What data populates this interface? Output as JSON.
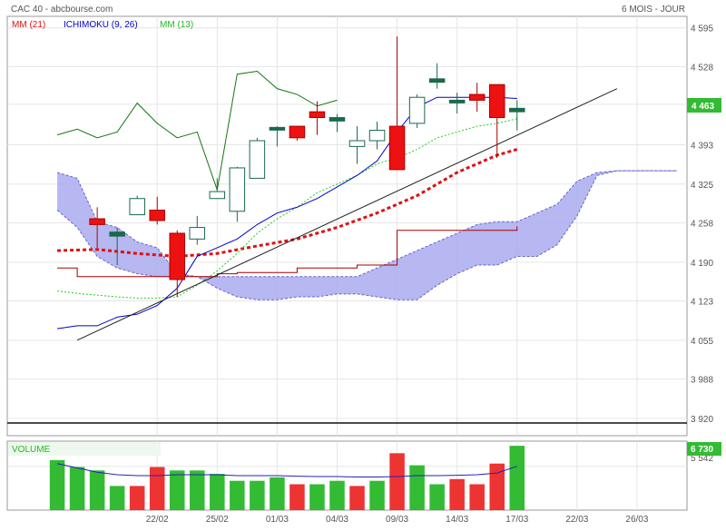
{
  "header": {
    "title": "CAC 40 - abcbourse.com",
    "period": "6 MOIS - JOUR"
  },
  "legend": {
    "mm21": "MM (21)",
    "ichimoku": "ICHIMOKU (9, 26)",
    "mm13": "MM (13)"
  },
  "volume_panel": {
    "label": "VOLUME",
    "tick": "5 542",
    "last_value": "6 730"
  },
  "colors": {
    "up_candle": "#ffffff",
    "down_candle": "#ee1111",
    "doji": "#1a6a4a",
    "mm21": "#dd1111",
    "mm13": "#22cc22",
    "close_line": "#117711",
    "tenkan": "#0000cc",
    "kijun": "#aa0000",
    "cloud": "#aaaaee",
    "trendline": "#222222",
    "vol_up": "#33bb33",
    "vol_down": "#ee3333",
    "price_tag": "#33bb33"
  },
  "chart_data": {
    "type": "candlestick",
    "price_axis": {
      "ylim": [
        3890,
        4615
      ],
      "ticks": [
        3920,
        3988,
        4055,
        4123,
        4190,
        4258,
        4325,
        4393,
        4463,
        4528,
        4595
      ],
      "tick_labels": [
        "3 920",
        "3 988",
        "4 055",
        "4 123",
        "4 190",
        "4 258",
        "4 325",
        "4 393",
        "4 463",
        "4 528",
        "4 595"
      ],
      "current_label": "4 463",
      "current_value": 4463,
      "hline": 3912
    },
    "x_axis": {
      "labels": [
        "22/02",
        "25/02",
        "01/03",
        "04/03",
        "09/03",
        "14/03",
        "17/03",
        "22/03",
        "26/03"
      ],
      "positions": [
        4,
        7,
        10,
        13,
        16,
        19,
        22,
        25,
        28
      ],
      "xlim": [
        -3.5,
        30.5
      ]
    },
    "candles": [
      {
        "x": 1,
        "open": 4265,
        "high": 4285,
        "low": 4215,
        "close": 4255
      },
      {
        "x": 2,
        "open": 4242,
        "high": 4250,
        "low": 4185,
        "close": 4235
      },
      {
        "x": 3,
        "open": 4272,
        "high": 4305,
        "low": 4272,
        "close": 4300
      },
      {
        "x": 4,
        "open": 4280,
        "high": 4303,
        "low": 4255,
        "close": 4262
      },
      {
        "x": 5,
        "open": 4240,
        "high": 4245,
        "low": 4130,
        "close": 4160
      },
      {
        "x": 6,
        "open": 4230,
        "high": 4270,
        "low": 4220,
        "close": 4250
      },
      {
        "x": 7,
        "open": 4300,
        "high": 4335,
        "low": 4300,
        "close": 4312
      },
      {
        "x": 8,
        "open": 4278,
        "high": 4355,
        "low": 4260,
        "close": 4353
      },
      {
        "x": 9,
        "open": 4335,
        "high": 4405,
        "low": 4335,
        "close": 4400
      },
      {
        "x": 10,
        "open": 4420,
        "high": 4425,
        "low": 4390,
        "close": 4423
      },
      {
        "x": 11,
        "open": 4425,
        "high": 4425,
        "low": 4400,
        "close": 4405
      },
      {
        "x": 12,
        "open": 4450,
        "high": 4468,
        "low": 4410,
        "close": 4440
      },
      {
        "x": 13,
        "open": 4434,
        "high": 4446,
        "low": 4415,
        "close": 4440
      },
      {
        "x": 14,
        "open": 4390,
        "high": 4425,
        "low": 4360,
        "close": 4400
      },
      {
        "x": 15,
        "open": 4400,
        "high": 4433,
        "low": 4385,
        "close": 4418
      },
      {
        "x": 16,
        "open": 4425,
        "high": 4580,
        "low": 4350,
        "close": 4350
      },
      {
        "x": 17,
        "open": 4430,
        "high": 4480,
        "low": 4422,
        "close": 4475
      },
      {
        "x": 18,
        "open": 4501,
        "high": 4534,
        "low": 4490,
        "close": 4507
      },
      {
        "x": 19,
        "open": 4467,
        "high": 4483,
        "low": 4447,
        "close": 4470
      },
      {
        "x": 20,
        "open": 4480,
        "high": 4500,
        "low": 4450,
        "close": 4470
      },
      {
        "x": 21,
        "open": 4497,
        "high": 4497,
        "low": 4370,
        "close": 4440
      },
      {
        "x": 22,
        "open": 4450,
        "high": 4470,
        "low": 4418,
        "close": 4456
      }
    ],
    "series": [
      {
        "name": "MM (21)",
        "x": [
          -1,
          1,
          3,
          5,
          7,
          9,
          11,
          13,
          15,
          17,
          19,
          21,
          22
        ],
        "values": [
          4210,
          4212,
          4205,
          4200,
          4205,
          4218,
          4230,
          4250,
          4275,
          4305,
          4345,
          4375,
          4385
        ]
      },
      {
        "name": "MM (13)",
        "x": [
          -1,
          0,
          1,
          2,
          3,
          4,
          5,
          6,
          7,
          8,
          9,
          10,
          11,
          12,
          13,
          14,
          15,
          16,
          17,
          18,
          19,
          20,
          21,
          22
        ],
        "values": [
          4140,
          4136,
          4133,
          4130,
          4128,
          4128,
          4130,
          4150,
          4175,
          4205,
          4240,
          4265,
          4285,
          4310,
          4325,
          4340,
          4360,
          4370,
          4385,
          4405,
          4415,
          4425,
          4430,
          4438
        ]
      },
      {
        "name": "close",
        "x": [
          -1,
          0,
          1,
          2,
          3,
          4,
          5,
          6,
          7,
          8,
          9,
          10,
          11,
          12,
          13
        ],
        "values": [
          4410,
          4420,
          4405,
          4415,
          4465,
          4430,
          4405,
          4415,
          4315,
          4515,
          4520,
          4490,
          4480,
          4460,
          4470
        ]
      },
      {
        "name": "tenkan",
        "x": [
          -1,
          0,
          1,
          2,
          3,
          4,
          5,
          6,
          7,
          8,
          9,
          10,
          11,
          12,
          13,
          14,
          15,
          16,
          17,
          18,
          19,
          20,
          21,
          22
        ],
        "values": [
          4075,
          4080,
          4080,
          4095,
          4100,
          4115,
          4145,
          4200,
          4215,
          4230,
          4255,
          4275,
          4285,
          4300,
          4320,
          4340,
          4365,
          4415,
          4458,
          4475,
          4475,
          4475,
          4475,
          4473
        ]
      },
      {
        "name": "kijun",
        "x": [
          -1,
          0,
          1,
          2,
          3,
          4,
          5,
          6,
          7,
          8,
          9,
          10,
          11,
          12,
          13,
          14,
          15,
          16,
          17,
          18,
          19,
          20,
          21,
          22
        ],
        "values": [
          4180,
          4165,
          4165,
          4165,
          4165,
          4165,
          4165,
          4165,
          4170,
          4172,
          4172,
          4172,
          4180,
          4180,
          4180,
          4185,
          4185,
          4245,
          4245,
          4245,
          4245,
          4245,
          4245,
          4252
        ]
      },
      {
        "name": "trend",
        "x": [
          0,
          27
        ],
        "values": [
          4055,
          4490
        ]
      }
    ],
    "cloud": {
      "x": [
        -1,
        0,
        1,
        2,
        3,
        4,
        5,
        6,
        7,
        8,
        9,
        10,
        11,
        12,
        13,
        14,
        15,
        16,
        17,
        18,
        19,
        20,
        21,
        22,
        23,
        24,
        25,
        26,
        27,
        28,
        29,
        30
      ],
      "upper": [
        4345,
        4335,
        4260,
        4250,
        4225,
        4215,
        4170,
        4165,
        4165,
        4165,
        4165,
        4165,
        4165,
        4165,
        4165,
        4165,
        4180,
        4195,
        4210,
        4225,
        4240,
        4255,
        4260,
        4260,
        4275,
        4290,
        4330,
        4345,
        4348,
        4348,
        4348,
        4348
      ],
      "lower": [
        4280,
        4250,
        4200,
        4180,
        4170,
        4165,
        4165,
        4165,
        4145,
        4130,
        4125,
        4125,
        4130,
        4130,
        4135,
        4135,
        4130,
        4125,
        4125,
        4150,
        4170,
        4185,
        4185,
        4200,
        4200,
        4220,
        4270,
        4340,
        4348,
        4348,
        4348,
        4348
      ]
    },
    "volume": {
      "x": [
        -1,
        0,
        1,
        2,
        3,
        4,
        5,
        6,
        7,
        8,
        9,
        10,
        11,
        12,
        13,
        14,
        15,
        16,
        17,
        18,
        19,
        20,
        21,
        22
      ],
      "values": [
        5900,
        5500,
        5300,
        4400,
        4400,
        5500,
        5300,
        5300,
        5100,
        4700,
        4700,
        4900,
        4500,
        4500,
        4700,
        4400,
        4700,
        6300,
        5600,
        4500,
        4800,
        4500,
        5700,
        6730
      ],
      "up": [
        true,
        true,
        true,
        true,
        false,
        false,
        true,
        true,
        true,
        true,
        true,
        true,
        false,
        true,
        true,
        false,
        true,
        false,
        true,
        true,
        false,
        false,
        false,
        true
      ],
      "average": [
        5700,
        5450,
        5200,
        5050,
        5000,
        5000,
        5050,
        5050,
        5050,
        5000,
        5000,
        5000,
        4970,
        4950,
        4950,
        4920,
        4920,
        4950,
        5000,
        5000,
        5020,
        5050,
        5150,
        5542
      ],
      "ylim": [
        3000,
        7000
      ]
    }
  }
}
